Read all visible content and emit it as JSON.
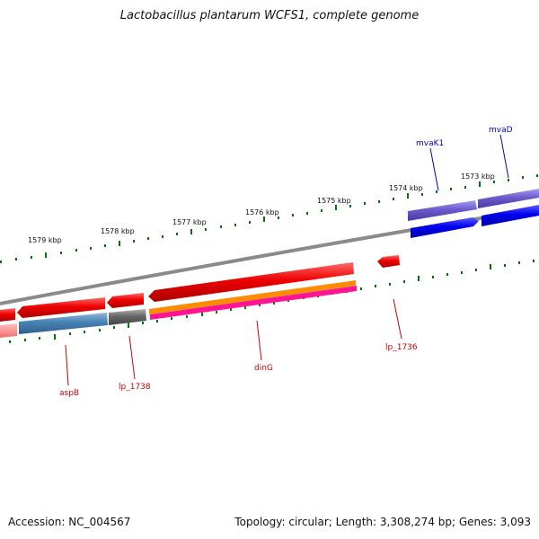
{
  "title": "Lactobacillus plantarum WCFS1, complete genome",
  "footer": {
    "accession": "Accession: NC_004567",
    "summary": "Topology: circular; Length: 3,308,274 bp; Genes: 3,093"
  },
  "scale_labels": [
    "1573 kbp",
    "1574 kbp",
    "1575 kbp",
    "1576 kbp",
    "1577 kbp",
    "1578 kbp",
    "1579 kbp"
  ],
  "gene_labels": {
    "mvaK1": "mvaK1",
    "mvaD": "mvaD",
    "lp_1736": "lp_1736",
    "dinG": "dinG",
    "lp_1738": "lp_1738",
    "aspB": "aspB"
  },
  "colors": {
    "backbone": "#8a8a8a",
    "cds_red": "#ee0000",
    "cds_blue": "#0000ee",
    "cds_purple": "#6a5acd",
    "cds_gray": "#666666",
    "cds_steelblue": "#4682b4",
    "cds_orange": "#ff8c00",
    "cds_magenta": "#ff1493",
    "tick": "#007700",
    "label_red": "#cc0000",
    "label_blue": "#0000cc"
  }
}
